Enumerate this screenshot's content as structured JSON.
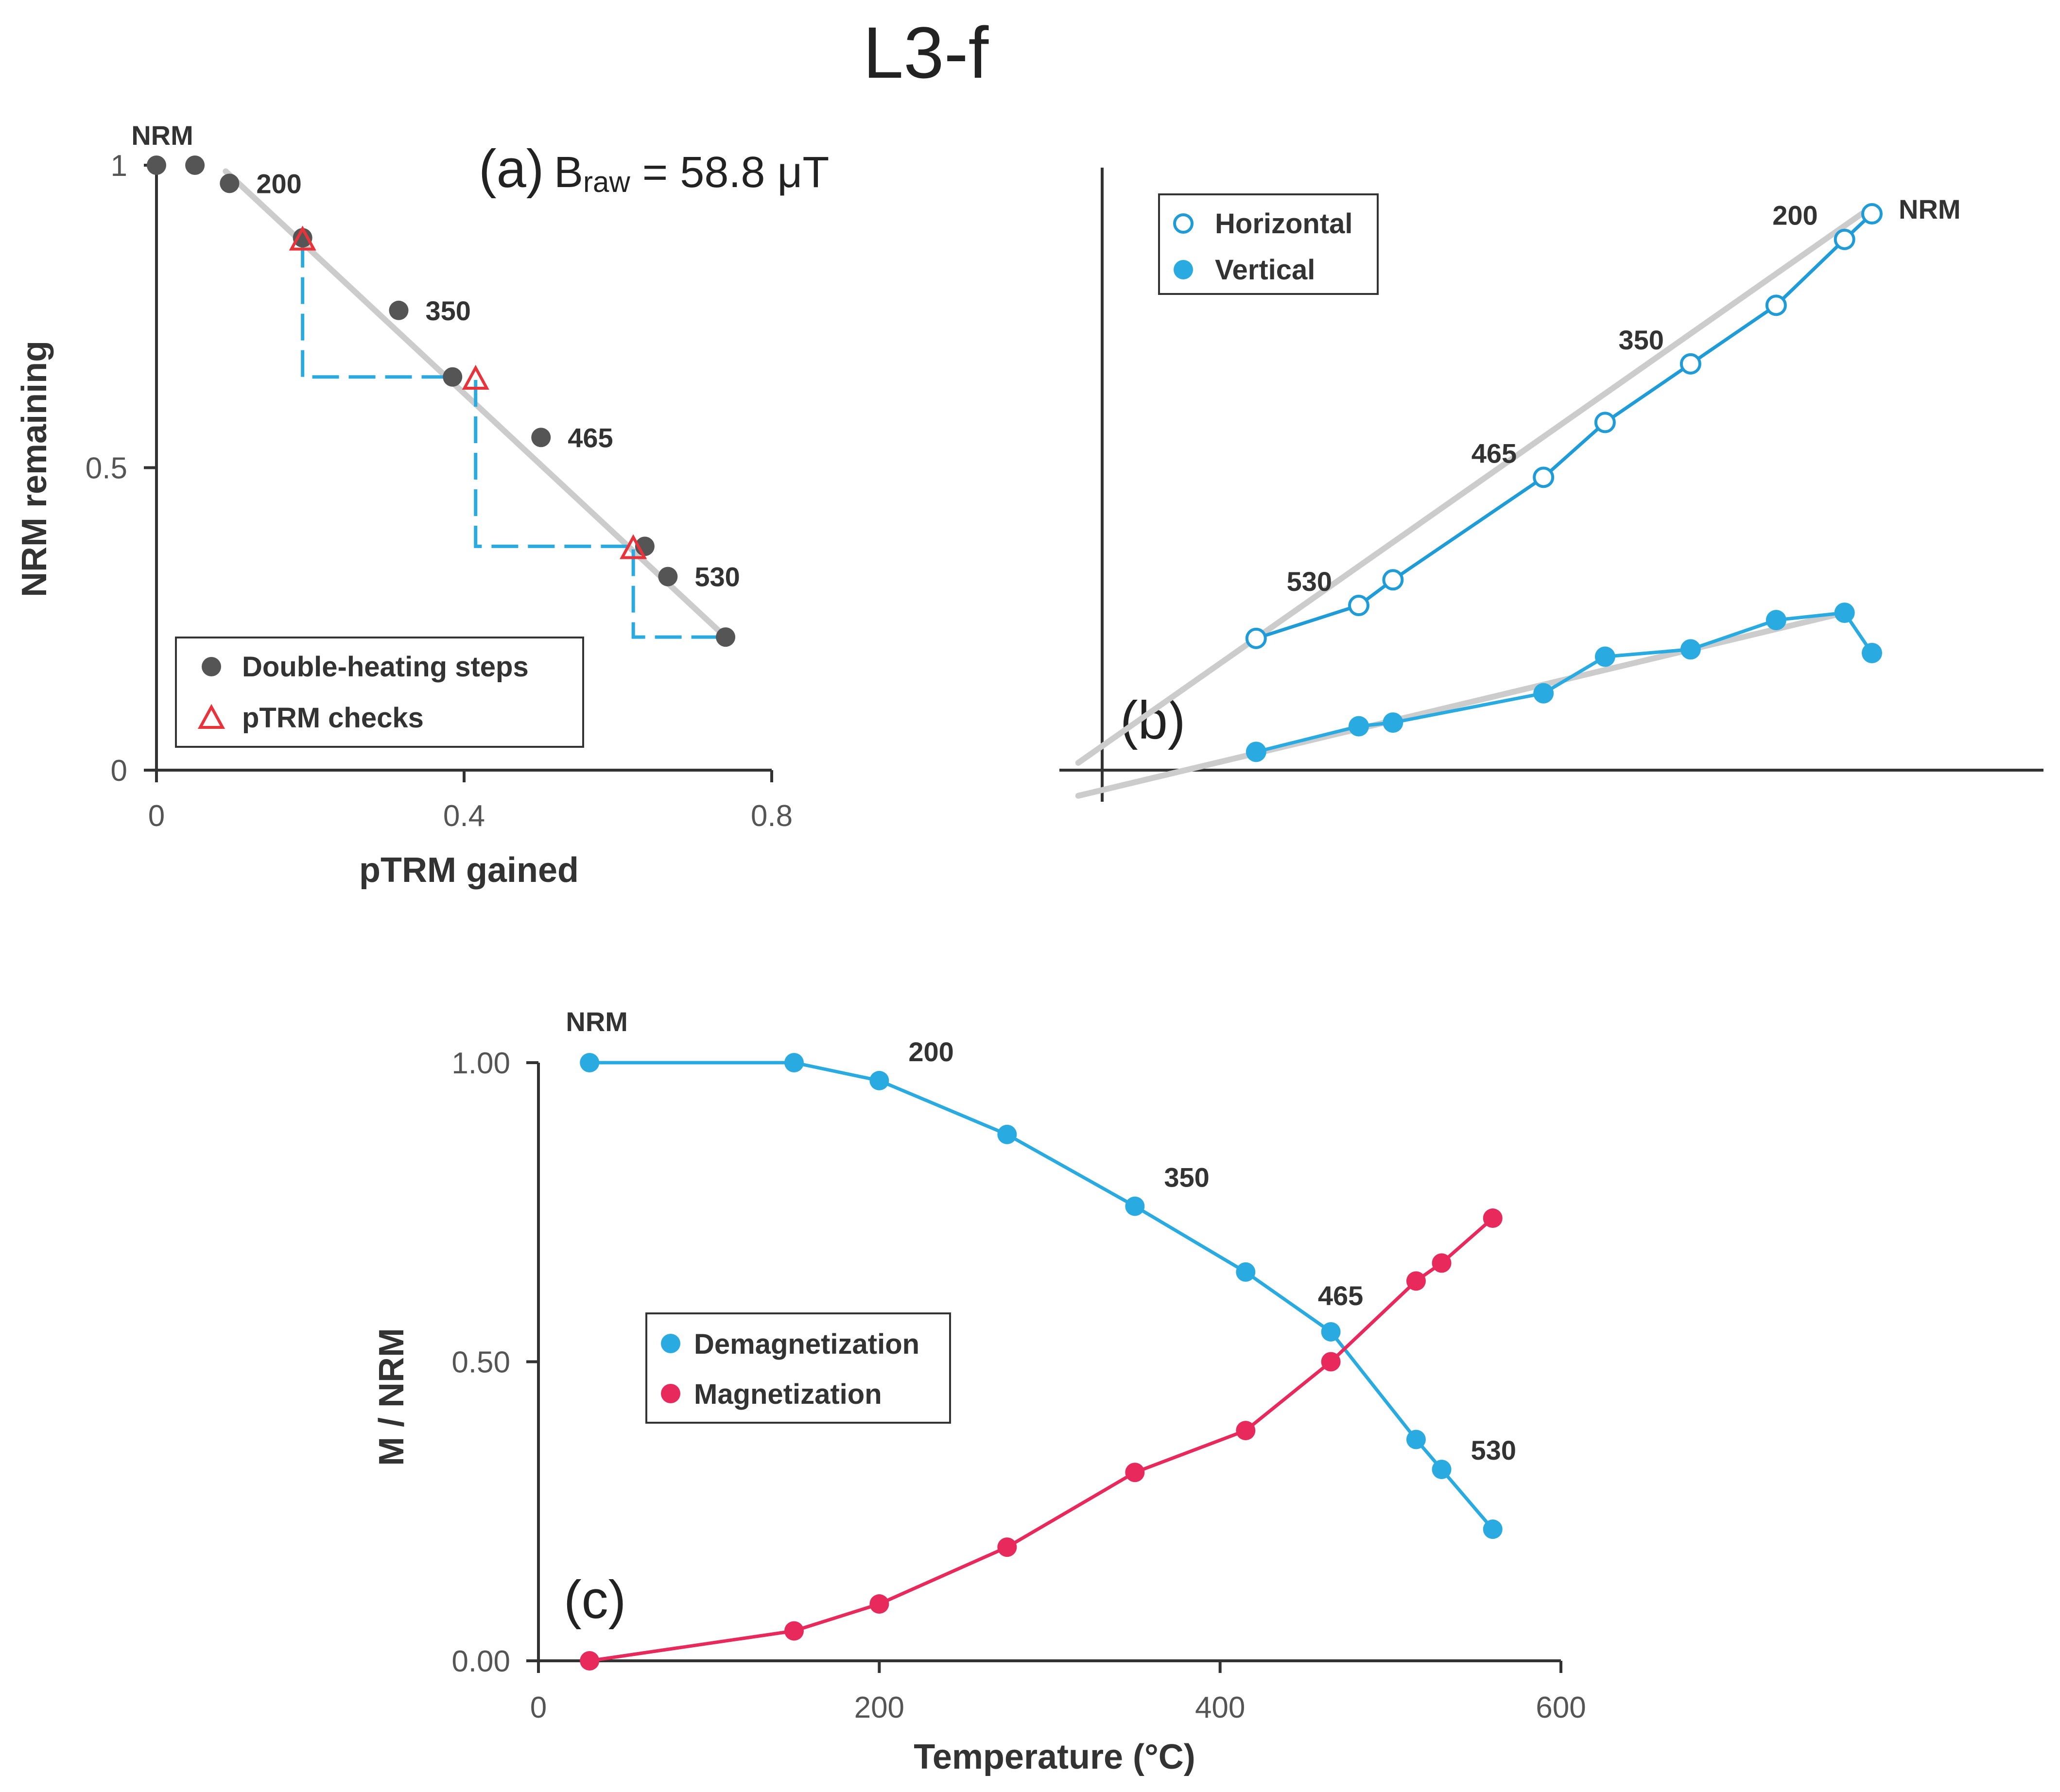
{
  "figure_title": "L3-f",
  "chart_data": [
    {
      "type": "scatter",
      "panel": "(a)",
      "annotation_prefix": "B",
      "annotation_subscript": "raw",
      "annotation_value": " = 58.8 μT",
      "xlabel": "pTRM gained",
      "ylabel": "NRM remaining",
      "xlim": [
        0,
        0.8
      ],
      "ylim": [
        0,
        1
      ],
      "xticks": [
        "0",
        "0.4",
        "0.8"
      ],
      "yticks": [
        "0",
        "0.5",
        "1"
      ],
      "fit_line": {
        "x": [
          0.09,
          0.74
        ],
        "y": [
          0.99,
          0.22
        ]
      },
      "series": [
        {
          "name": "Double-heating steps",
          "color": "#555555",
          "x": [
            0,
            0.05,
            0.095,
            0.19,
            0.315,
            0.385,
            0.5,
            0.635,
            0.665,
            0.74
          ],
          "y": [
            1.0,
            1.0,
            0.97,
            0.88,
            0.76,
            0.65,
            0.55,
            0.37,
            0.32,
            0.22
          ]
        },
        {
          "name": "pTRM checks",
          "color": "#e8333a",
          "x": [
            0.19,
            0.415,
            0.62
          ],
          "y": [
            0.875,
            0.645,
            0.365
          ]
        }
      ],
      "check_lines": [
        {
          "x0": 0.19,
          "y0": 0.875,
          "x1": 0.19,
          "y1": 0.65,
          "x2": 0.385,
          "y2": 0.65
        },
        {
          "x0": 0.415,
          "y0": 0.645,
          "x1": 0.415,
          "y1": 0.37,
          "x2": 0.635,
          "y2": 0.37
        },
        {
          "x0": 0.62,
          "y0": 0.365,
          "x1": 0.62,
          "y1": 0.22,
          "x2": 0.74,
          "y2": 0.22
        }
      ],
      "point_labels": [
        {
          "text": "NRM",
          "x": 0,
          "y": 1.0
        },
        {
          "text": "200",
          "x": 0.095,
          "y": 0.97
        },
        {
          "text": "350",
          "x": 0.315,
          "y": 0.76
        },
        {
          "text": "465",
          "x": 0.5,
          "y": 0.55
        },
        {
          "text": "530",
          "x": 0.665,
          "y": 0.32
        }
      ],
      "check_line_color": "#29abe2",
      "fit_color": "#cccccc"
    },
    {
      "type": "line",
      "panel": "(b)",
      "xlim": [
        -0.1,
        2.75
      ],
      "ylim": [
        -0.15,
        1.7
      ],
      "fit_color": "#cccccc",
      "series": [
        {
          "name": "Horizontal",
          "color": "#1f9cd8",
          "marker": "open-circle",
          "x": [
            2.25,
            2.17,
            1.97,
            1.72,
            1.47,
            1.29,
            0.85,
            0.75,
            0.45
          ],
          "y": [
            1.52,
            1.45,
            1.27,
            1.11,
            0.95,
            0.8,
            0.52,
            0.45,
            0.36
          ]
        },
        {
          "name": "Vertical",
          "color": "#29abe2",
          "marker": "filled-circle",
          "x": [
            2.25,
            2.17,
            1.97,
            1.72,
            1.47,
            1.29,
            0.85,
            0.75,
            0.45
          ],
          "y": [
            0.32,
            0.43,
            0.41,
            0.33,
            0.31,
            0.21,
            0.13,
            0.12,
            0.05
          ]
        }
      ],
      "fits": [
        {
          "x": [
            -0.07,
            2.22
          ],
          "y": [
            0.02,
            1.52
          ]
        },
        {
          "x": [
            -0.07,
            2.17
          ],
          "y": [
            -0.07,
            0.43
          ]
        }
      ],
      "point_labels": [
        {
          "text": "NRM",
          "series": "Horizontal",
          "x": 2.25,
          "y": 1.52
        },
        {
          "text": "200",
          "series": "Horizontal",
          "x": 2.17,
          "y": 1.45
        },
        {
          "text": "350",
          "series": "Horizontal",
          "x": 1.72,
          "y": 1.11
        },
        {
          "text": "465",
          "series": "Horizontal",
          "x": 1.29,
          "y": 0.8
        },
        {
          "text": "530",
          "series": "Horizontal",
          "x": 0.75,
          "y": 0.45
        }
      ]
    },
    {
      "type": "line",
      "panel": "(c)",
      "xlabel": "Temperature (°C)",
      "ylabel": "M / NRM",
      "xlim": [
        0,
        600
      ],
      "ylim": [
        0,
        1
      ],
      "xticks": [
        "0",
        "200",
        "400",
        "600"
      ],
      "yticks": [
        "0.00",
        "0.50",
        "1.00"
      ],
      "series": [
        {
          "name": "Demagnetization",
          "color": "#29abe2",
          "x": [
            30,
            150,
            200,
            275,
            350,
            415,
            465,
            515,
            530,
            560
          ],
          "y": [
            1.0,
            1.0,
            0.97,
            0.88,
            0.76,
            0.65,
            0.55,
            0.37,
            0.32,
            0.22
          ]
        },
        {
          "name": "Magnetization",
          "color": "#e8295b",
          "x": [
            30,
            150,
            200,
            275,
            350,
            415,
            465,
            515,
            530,
            560
          ],
          "y": [
            0.0,
            0.05,
            0.095,
            0.19,
            0.315,
            0.385,
            0.5,
            0.635,
            0.665,
            0.74
          ]
        }
      ],
      "point_labels": [
        {
          "text": "NRM",
          "x": 30,
          "y": 1.0
        },
        {
          "text": "200",
          "x": 200,
          "y": 0.97
        },
        {
          "text": "350",
          "x": 350,
          "y": 0.76
        },
        {
          "text": "465",
          "x": 465,
          "y": 0.55
        },
        {
          "text": "530",
          "x": 530,
          "y": 0.32
        }
      ]
    }
  ]
}
